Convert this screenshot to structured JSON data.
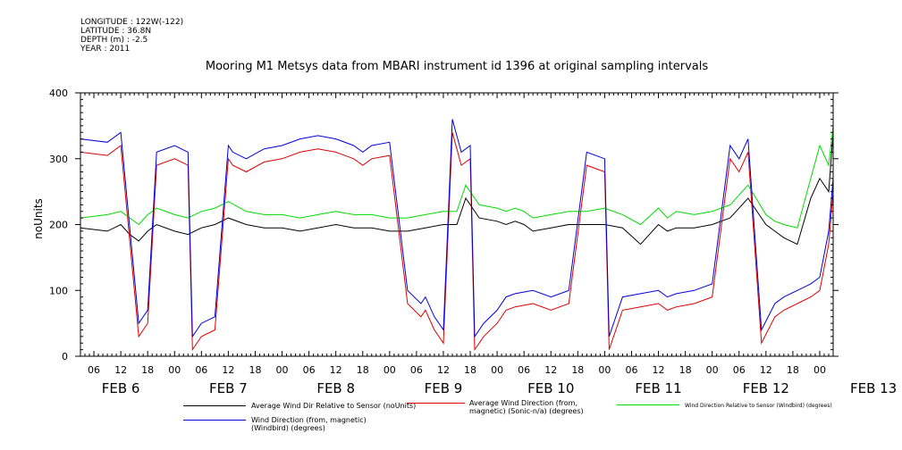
{
  "header": {
    "longitude": "LONGITUDE : 122W(-122)",
    "latitude": "LATITUDE : 36.8N",
    "depth": "DEPTH (m) : -2.5",
    "year": "YEAR : 2011"
  },
  "chart_data": {
    "type": "line",
    "title": "Mooring M1 Metsys data from MBARI instrument id 1396 at original sampling intervals",
    "ylabel": "noUnits",
    "ylim": [
      0,
      400
    ],
    "yticks": [
      0,
      100,
      200,
      300,
      400
    ],
    "xlim": [
      3,
      171
    ],
    "x_units": "hours since Feb 6 00:00 (2011)",
    "hour_tick_labels": [
      "06",
      "12",
      "18",
      "00",
      "06",
      "12",
      "18",
      "00",
      "06",
      "12",
      "18",
      "00",
      "06",
      "12",
      "18",
      "00",
      "06",
      "12",
      "18",
      "00",
      "06",
      "12",
      "18",
      "00",
      "06",
      "12",
      "18",
      "00"
    ],
    "day_labels": [
      "FEB  6",
      "FEB  7",
      "FEB  8",
      "FEB  9",
      "FEB 10",
      "FEB 11",
      "FEB 12",
      "FEB 13"
    ],
    "grid": false,
    "legend_position": "bottom",
    "series": [
      {
        "name": "Average Wind Dir Relative to Sensor (noUnits)",
        "color": "#000000",
        "x": [
          3,
          9,
          12,
          14,
          16,
          18,
          20,
          24,
          27,
          30,
          33,
          36,
          40,
          44,
          48,
          52,
          56,
          60,
          64,
          68,
          72,
          76,
          80,
          84,
          87,
          89,
          92,
          96,
          98,
          100,
          102,
          104,
          108,
          112,
          116,
          120,
          124,
          128,
          132,
          134,
          136,
          140,
          144,
          148,
          152,
          156,
          158,
          160,
          163,
          166,
          168,
          170,
          171
        ],
        "y": [
          195,
          190,
          200,
          185,
          175,
          190,
          200,
          190,
          185,
          195,
          200,
          210,
          200,
          195,
          195,
          190,
          195,
          200,
          195,
          195,
          190,
          190,
          195,
          200,
          200,
          240,
          210,
          205,
          200,
          205,
          200,
          190,
          195,
          200,
          200,
          200,
          195,
          170,
          200,
          190,
          195,
          195,
          200,
          210,
          240,
          200,
          190,
          180,
          170,
          240,
          270,
          250,
          340
        ]
      },
      {
        "name": "Average Wind Direction (from, magnetic) (Sonic-n/a) (degrees)",
        "color": "#dd0000",
        "x": [
          3,
          9,
          12,
          16,
          18,
          20,
          24,
          27,
          28,
          30,
          33,
          36,
          37,
          40,
          44,
          48,
          52,
          56,
          60,
          64,
          66,
          68,
          72,
          76,
          79,
          80,
          82,
          84,
          86,
          88,
          90,
          91,
          93,
          96,
          98,
          100,
          104,
          108,
          112,
          116,
          120,
          121,
          124,
          128,
          132,
          134,
          136,
          140,
          144,
          148,
          150,
          152,
          155,
          158,
          160,
          163,
          166,
          168,
          170,
          171
        ],
        "y": [
          310,
          305,
          320,
          30,
          50,
          290,
          300,
          290,
          10,
          30,
          40,
          300,
          290,
          280,
          295,
          300,
          310,
          315,
          310,
          300,
          290,
          300,
          305,
          80,
          60,
          70,
          40,
          20,
          340,
          290,
          300,
          10,
          30,
          50,
          70,
          75,
          80,
          70,
          80,
          290,
          280,
          10,
          70,
          75,
          80,
          70,
          75,
          80,
          90,
          300,
          280,
          310,
          20,
          60,
          70,
          80,
          90,
          100,
          170,
          250
        ]
      },
      {
        "name": "Wind Direction Relative to Sensor (Windbird) (degrees)",
        "color": "#00dd00",
        "x": [
          3,
          9,
          12,
          14,
          16,
          18,
          20,
          24,
          27,
          30,
          33,
          36,
          40,
          44,
          48,
          52,
          56,
          60,
          64,
          68,
          72,
          76,
          80,
          84,
          87,
          89,
          92,
          96,
          98,
          100,
          102,
          104,
          108,
          112,
          116,
          120,
          124,
          128,
          132,
          134,
          136,
          140,
          144,
          148,
          152,
          156,
          158,
          160,
          163,
          166,
          168,
          170,
          171
        ],
        "y": [
          210,
          215,
          220,
          210,
          200,
          215,
          225,
          215,
          210,
          220,
          225,
          235,
          220,
          215,
          215,
          210,
          215,
          220,
          215,
          215,
          210,
          210,
          215,
          220,
          220,
          260,
          230,
          225,
          220,
          225,
          220,
          210,
          215,
          220,
          220,
          225,
          215,
          200,
          225,
          210,
          220,
          215,
          220,
          230,
          260,
          215,
          205,
          200,
          195,
          270,
          320,
          290,
          350
        ]
      },
      {
        "name": "Wind Direction (from, magnetic) (Windbird) (degrees)",
        "color": "#0000dd",
        "x": [
          3,
          9,
          12,
          16,
          18,
          20,
          24,
          27,
          28,
          30,
          33,
          36,
          37,
          40,
          44,
          48,
          52,
          56,
          60,
          64,
          66,
          68,
          72,
          76,
          79,
          80,
          82,
          84,
          86,
          88,
          90,
          91,
          93,
          96,
          98,
          100,
          104,
          108,
          112,
          116,
          120,
          121,
          124,
          128,
          132,
          134,
          136,
          140,
          144,
          148,
          150,
          152,
          155,
          158,
          160,
          163,
          166,
          168,
          170,
          171
        ],
        "y": [
          330,
          325,
          340,
          50,
          70,
          310,
          320,
          310,
          30,
          50,
          60,
          320,
          310,
          300,
          315,
          320,
          330,
          335,
          330,
          320,
          310,
          320,
          325,
          100,
          80,
          90,
          60,
          40,
          360,
          310,
          320,
          30,
          50,
          70,
          90,
          95,
          100,
          90,
          100,
          310,
          300,
          30,
          90,
          95,
          100,
          90,
          95,
          100,
          110,
          320,
          300,
          330,
          40,
          80,
          90,
          100,
          110,
          120,
          190,
          270
        ]
      }
    ]
  },
  "legend": {
    "items": [
      {
        "label": "Average Wind Dir Relative to Sensor (noUnits)",
        "color": "#000000"
      },
      {
        "label": "Average Wind Direction (from, magnetic) (Sonic-n/a) (degrees)",
        "color": "#dd0000"
      },
      {
        "label": "Wind Direction Relative to Sensor (Windbird) (degrees)",
        "color": "#00dd00"
      },
      {
        "label": "Wind Direction (from, magnetic) (Windbird) (degrees)",
        "color": "#0000dd"
      }
    ]
  }
}
